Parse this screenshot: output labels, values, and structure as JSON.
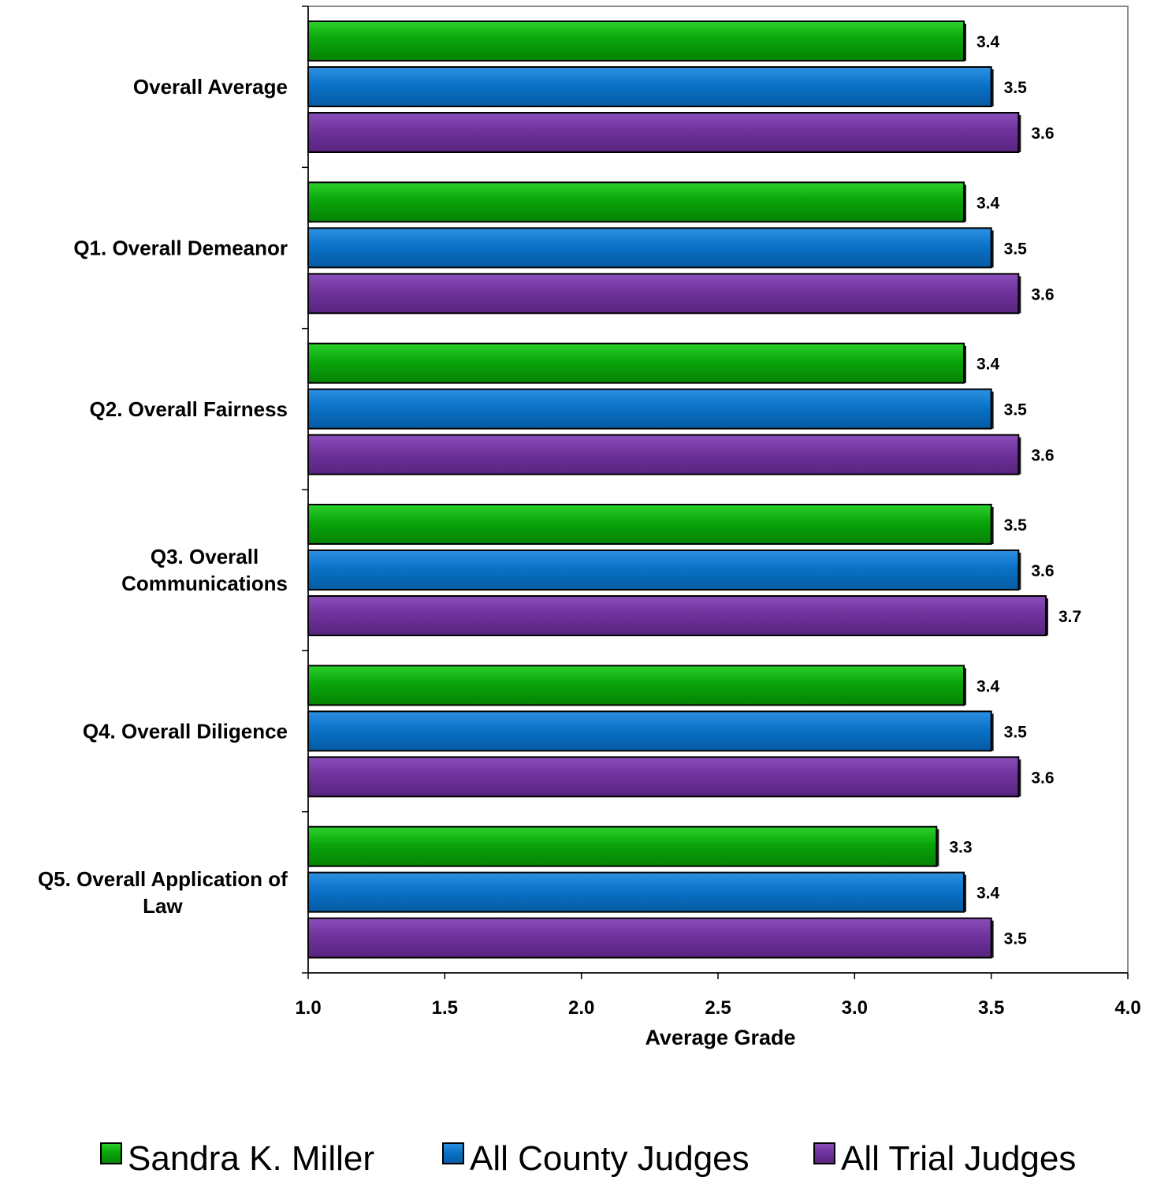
{
  "chart_data": {
    "type": "bar",
    "orientation": "horizontal",
    "categories": [
      "Overall Average",
      "Q1. Overall Demeanor",
      "Q2. Overall Fairness",
      "Q3. Overall Communications",
      "Q4. Overall Diligence",
      "Q5. Overall Application of Law"
    ],
    "category_label_lines": [
      [
        "Overall Average"
      ],
      [
        "Q1. Overall Demeanor"
      ],
      [
        "Q2. Overall Fairness"
      ],
      [
        "Q3. Overall",
        "Communications"
      ],
      [
        "Q4. Overall Diligence"
      ],
      [
        "Q5. Overall Application of",
        "Law"
      ]
    ],
    "series": [
      {
        "name": "Sandra K. Miller",
        "color": "#0AA40A",
        "values": [
          3.4,
          3.4,
          3.4,
          3.5,
          3.4,
          3.3
        ],
        "labels": [
          "3.4",
          "3.4",
          "3.4",
          "3.5",
          "3.4",
          "3.3"
        ]
      },
      {
        "name": "All County Judges",
        "color": "#0A73C8",
        "values": [
          3.5,
          3.5,
          3.5,
          3.6,
          3.5,
          3.4
        ],
        "labels": [
          "3.5",
          "3.5",
          "3.5",
          "3.6",
          "3.5",
          "3.4"
        ]
      },
      {
        "name": "All Trial Judges",
        "color": "#70339E",
        "values": [
          3.6,
          3.6,
          3.6,
          3.7,
          3.6,
          3.5
        ],
        "labels": [
          "3.6",
          "3.6",
          "3.6",
          "3.7",
          "3.6",
          "3.5"
        ]
      }
    ],
    "xlabel": "Average Grade",
    "xlim": [
      1.0,
      4.0
    ],
    "xticks": [
      1.0,
      1.5,
      2.0,
      2.5,
      3.0,
      3.5,
      4.0
    ],
    "xtick_labels": [
      "1.0",
      "1.5",
      "2.0",
      "2.5",
      "3.0",
      "3.5",
      "4.0"
    ],
    "grid": false,
    "legend_position": "bottom"
  }
}
